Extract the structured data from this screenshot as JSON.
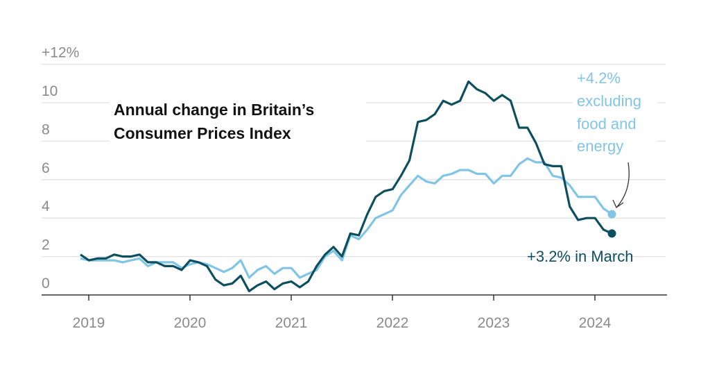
{
  "chart_data": {
    "type": "line",
    "title": [
      "Annual change in Britain’s",
      "Consumer Prices Index"
    ],
    "xlabel": "",
    "ylabel": "",
    "ylim": [
      0,
      12
    ],
    "y_ticks": [
      0,
      2,
      4,
      6,
      8,
      10,
      12
    ],
    "y_tick_labels": [
      "0",
      "2",
      "4",
      "6",
      "8",
      "10",
      "+12%"
    ],
    "x_tick_labels": [
      "2019",
      "2020",
      "2021",
      "2022",
      "2023",
      "2024"
    ],
    "x_range": [
      "2018-12",
      "2024-03"
    ],
    "grid": true,
    "colors": {
      "headline": "#0d4f5e",
      "core": "#80c5e6",
      "grid": "#e2e2e2",
      "axis": "#333333"
    },
    "series": [
      {
        "key": "headline",
        "values": [
          2.1,
          1.8,
          1.9,
          1.9,
          2.1,
          2.0,
          2.0,
          2.1,
          1.7,
          1.7,
          1.5,
          1.5,
          1.3,
          1.8,
          1.7,
          1.5,
          0.8,
          0.5,
          0.6,
          1.0,
          0.2,
          0.5,
          0.7,
          0.3,
          0.6,
          0.7,
          0.4,
          0.7,
          1.5,
          2.1,
          2.5,
          2.0,
          3.2,
          3.1,
          4.2,
          5.1,
          5.4,
          5.5,
          6.2,
          7.0,
          9.0,
          9.1,
          9.4,
          10.1,
          9.9,
          10.1,
          11.1,
          10.7,
          10.5,
          10.1,
          10.4,
          10.1,
          8.7,
          8.7,
          7.9,
          6.8,
          6.7,
          6.7,
          4.6,
          3.9,
          4.0,
          4.0,
          3.4,
          3.2
        ]
      },
      {
        "key": "core",
        "values": [
          1.9,
          1.8,
          1.8,
          1.8,
          1.8,
          1.7,
          1.8,
          1.9,
          1.5,
          1.7,
          1.7,
          1.7,
          1.4,
          1.6,
          1.7,
          1.6,
          1.4,
          1.2,
          1.4,
          1.8,
          0.9,
          1.3,
          1.5,
          1.1,
          1.4,
          1.4,
          0.9,
          1.1,
          1.3,
          2.0,
          2.3,
          1.8,
          3.1,
          2.9,
          3.4,
          4.0,
          4.2,
          4.4,
          5.2,
          5.7,
          6.2,
          5.9,
          5.8,
          6.2,
          6.3,
          6.5,
          6.5,
          6.3,
          6.3,
          5.8,
          6.2,
          6.2,
          6.8,
          7.1,
          6.9,
          6.9,
          6.2,
          6.1,
          5.7,
          5.1,
          5.1,
          5.1,
          4.5,
          4.2
        ]
      }
    ],
    "annotations": {
      "core": [
        "+4.2%",
        "excluding",
        "food and",
        "energy"
      ],
      "headline": "+3.2% in March"
    }
  }
}
